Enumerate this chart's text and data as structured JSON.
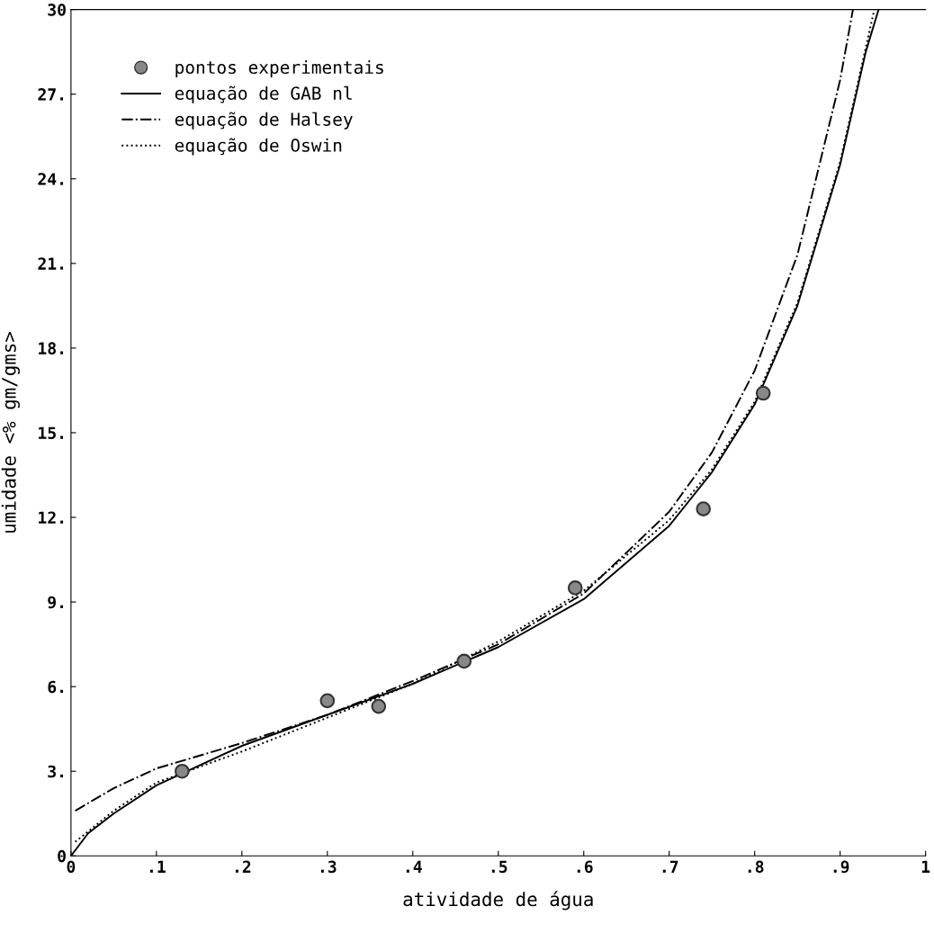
{
  "chart_data": {
    "type": "line",
    "xlabel": "atividade de água",
    "ylabel": "umidade <% gm/gms>",
    "xlim": [
      0,
      1
    ],
    "ylim": [
      0,
      30
    ],
    "xticks": [
      0,
      {
        "value": 0.1,
        "label": ".1"
      },
      {
        "value": 0.2,
        "label": ".2"
      },
      {
        "value": 0.3,
        "label": ".3"
      },
      {
        "value": 0.4,
        "label": ".4"
      },
      {
        "value": 0.5,
        "label": ".5"
      },
      {
        "value": 0.6,
        "label": ".6"
      },
      {
        "value": 0.7,
        "label": ".7"
      },
      {
        "value": 0.8,
        "label": ".8"
      },
      {
        "value": 0.9,
        "label": ".9"
      },
      1
    ],
    "yticks": [
      0,
      {
        "value": 3,
        "label": "3."
      },
      {
        "value": 6,
        "label": "6."
      },
      {
        "value": 9,
        "label": "9."
      },
      {
        "value": 12,
        "label": "12."
      },
      {
        "value": 15,
        "label": "15."
      },
      {
        "value": 18,
        "label": "18."
      },
      {
        "value": 21,
        "label": "21."
      },
      {
        "value": 24,
        "label": "24."
      },
      {
        "value": 27,
        "label": "27."
      },
      30
    ],
    "grid": false,
    "legend": "top left",
    "series": [
      {
        "name": "pontos experimentais",
        "type": "scatter",
        "marker": "circle",
        "color": "#333333",
        "x": [
          0.13,
          0.3,
          0.36,
          0.46,
          0.59,
          0.74,
          0.81
        ],
        "values": [
          3.0,
          5.5,
          5.3,
          6.9,
          9.5,
          12.3,
          16.4
        ]
      },
      {
        "name": "equação de GAB nl",
        "line_style": "solid",
        "color": "#000000",
        "x": [
          0,
          0.02,
          0.05,
          0.1,
          0.2,
          0.3,
          0.4,
          0.5,
          0.6,
          0.7,
          0.75,
          0.8,
          0.85,
          0.9,
          0.93,
          0.945
        ],
        "values": [
          0,
          0.8,
          1.5,
          2.5,
          3.9,
          5.0,
          6.1,
          7.4,
          9.1,
          11.7,
          13.6,
          16.0,
          19.5,
          24.5,
          28.5,
          30
        ]
      },
      {
        "name": "equação de Halsey",
        "line_style": "dashdot",
        "color": "#000000",
        "x": [
          0.005,
          0.05,
          0.1,
          0.2,
          0.3,
          0.4,
          0.5,
          0.6,
          0.7,
          0.75,
          0.8,
          0.85,
          0.9,
          0.915
        ],
        "values": [
          1.6,
          2.4,
          3.1,
          4.0,
          5.0,
          6.2,
          7.5,
          9.3,
          12.2,
          14.3,
          17.2,
          21.3,
          27.5,
          30
        ]
      },
      {
        "name": "equação de Oswin",
        "line_style": "dotted",
        "color": "#000000",
        "x": [
          0.005,
          0.05,
          0.1,
          0.2,
          0.3,
          0.4,
          0.5,
          0.6,
          0.7,
          0.75,
          0.8,
          0.85,
          0.9,
          0.94
        ],
        "values": [
          0.5,
          1.6,
          2.6,
          3.7,
          4.9,
          6.1,
          7.6,
          9.4,
          11.9,
          13.7,
          16.1,
          19.6,
          24.6,
          30
        ]
      }
    ]
  }
}
